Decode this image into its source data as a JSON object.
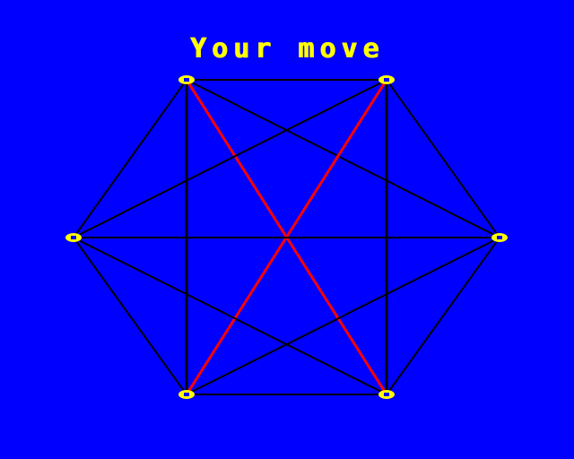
{
  "game": {
    "status_text": "Your move",
    "colors": {
      "background": "#0000FF",
      "text": "#FFFF00",
      "node": "#FFFF00",
      "line": "#000000",
      "player_line": "#FF0000"
    },
    "node_icon": "pixel-circle-icon",
    "nodes": [
      {
        "id": "top-left"
      },
      {
        "id": "top-right"
      },
      {
        "id": "right"
      },
      {
        "id": "bottom-right"
      },
      {
        "id": "bottom-left"
      },
      {
        "id": "left"
      }
    ],
    "edges": [
      {
        "a": "top-left",
        "b": "top-right",
        "owner": "computer"
      },
      {
        "a": "top-left",
        "b": "right",
        "owner": "computer"
      },
      {
        "a": "top-left",
        "b": "bottom-right",
        "owner": "player"
      },
      {
        "a": "top-left",
        "b": "bottom-left",
        "owner": "computer"
      },
      {
        "a": "top-left",
        "b": "left",
        "owner": "computer"
      },
      {
        "a": "top-right",
        "b": "right",
        "owner": "computer"
      },
      {
        "a": "top-right",
        "b": "bottom-right",
        "owner": "computer"
      },
      {
        "a": "top-right",
        "b": "bottom-left",
        "owner": "player"
      },
      {
        "a": "top-right",
        "b": "left",
        "owner": "computer"
      },
      {
        "a": "right",
        "b": "bottom-right",
        "owner": "computer"
      },
      {
        "a": "right",
        "b": "bottom-left",
        "owner": "computer"
      },
      {
        "a": "right",
        "b": "left",
        "owner": "computer"
      },
      {
        "a": "bottom-right",
        "b": "bottom-left",
        "owner": "computer"
      },
      {
        "a": "bottom-right",
        "b": "left",
        "owner": "computer"
      },
      {
        "a": "bottom-left",
        "b": "left",
        "owner": "computer"
      }
    ]
  }
}
